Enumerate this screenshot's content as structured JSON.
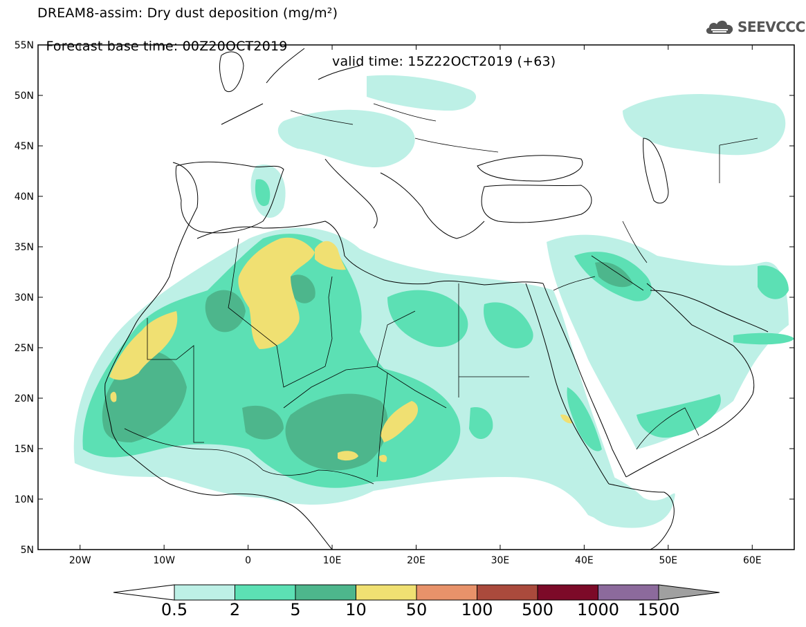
{
  "header": {
    "title_line1": "DREAM8-assim: Dry dust deposition (mg/m²)",
    "forecast_base": "Forecast base time: 00Z20OCT2019",
    "valid_time": "valid time: 15Z22OCT2019 (+63)"
  },
  "logo": {
    "text": "SEEVCCC",
    "icon": "cloud-icon"
  },
  "map": {
    "lon_range": [
      -25,
      65
    ],
    "lat_range": [
      5,
      55
    ],
    "lon_ticks": [
      "20W",
      "10W",
      "0",
      "10E",
      "20E",
      "30E",
      "40E",
      "50E",
      "60E"
    ],
    "lat_ticks": [
      "5N",
      "10N",
      "15N",
      "20N",
      "25N",
      "30N",
      "35N",
      "40N",
      "45N",
      "50N",
      "55N"
    ]
  },
  "colorbar": {
    "labels": [
      "0.5",
      "2",
      "5",
      "10",
      "50",
      "100",
      "500",
      "1000",
      "1500"
    ],
    "colors": [
      "#bdf0e6",
      "#5ce0b4",
      "#4db68c",
      "#f0e072",
      "#e8926a",
      "#aa4a3c",
      "#7c0a28",
      "#8c6a9c"
    ],
    "end_left_color": "#ffffff",
    "end_right_color": "#a0a0a0"
  },
  "legend_colors": {
    "light": "#bdf0e6",
    "medium": "#5ce0b4",
    "dark": "#4db68c",
    "yellow": "#f0e072"
  }
}
